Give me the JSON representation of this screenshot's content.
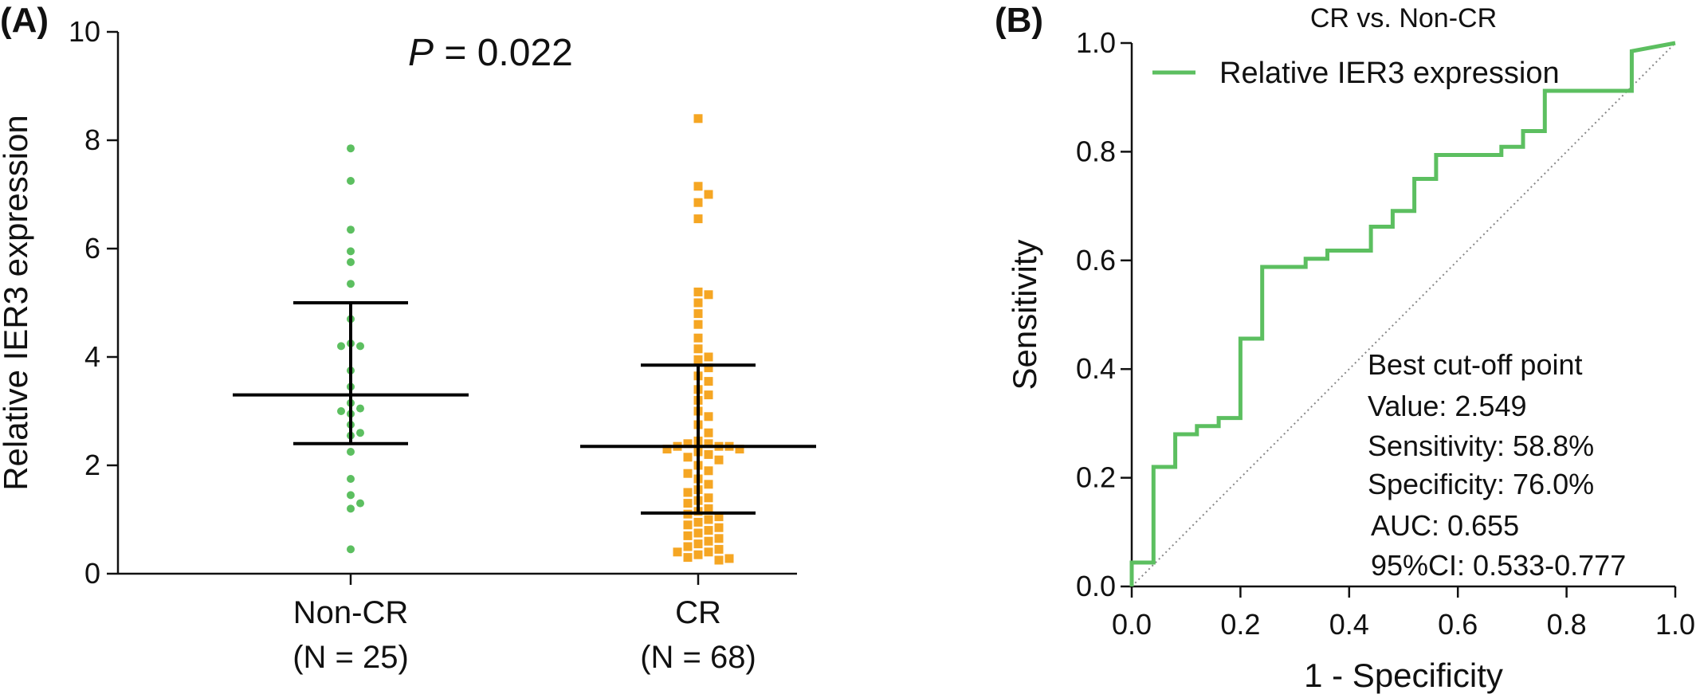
{
  "chart_data": [
    {
      "panel": "(A)",
      "type": "scatter",
      "title": "",
      "annotation": {
        "p_italic": "P",
        "p_rest": " = 0.022"
      },
      "ylabel": "Relative IER3 expression",
      "xlabel": "",
      "ylim": [
        0,
        10
      ],
      "yticks": [
        "0",
        "2",
        "4",
        "6",
        "8",
        "10"
      ],
      "categories": [
        {
          "line1": "Non-CR",
          "line2": "(N = 25)"
        },
        {
          "line1": "CR",
          "line2": "(N = 68)"
        }
      ],
      "series": [
        {
          "category": 0,
          "marker": "circle",
          "color": "#5cbf60",
          "values": [
            7.85,
            7.25,
            6.35,
            5.95,
            5.75,
            5.35,
            4.7,
            4.25,
            4.2,
            4.2,
            3.75,
            3.45,
            3.15,
            3.05,
            3.0,
            2.95,
            2.75,
            2.6,
            2.55,
            2.25,
            1.75,
            1.45,
            1.3,
            1.2,
            0.45
          ],
          "median": 3.3,
          "q1": 2.4,
          "q3": 5.0
        },
        {
          "category": 1,
          "marker": "square",
          "color": "#f5a623",
          "values": [
            8.4,
            7.15,
            7.0,
            6.85,
            6.55,
            5.2,
            5.15,
            5.0,
            4.8,
            4.6,
            4.35,
            4.15,
            4.0,
            3.95,
            3.8,
            3.65,
            3.55,
            3.4,
            3.3,
            3.2,
            3.0,
            2.9,
            2.75,
            2.6,
            2.45,
            2.4,
            2.4,
            2.35,
            2.35,
            2.35,
            2.3,
            2.3,
            2.25,
            2.2,
            2.15,
            2.1,
            2.0,
            1.9,
            1.85,
            1.75,
            1.65,
            1.55,
            1.5,
            1.4,
            1.35,
            1.3,
            1.2,
            1.15,
            1.1,
            1.05,
            1.0,
            0.95,
            0.9,
            0.85,
            0.8,
            0.75,
            0.7,
            0.65,
            0.6,
            0.55,
            0.5,
            0.45,
            0.4,
            0.4,
            0.35,
            0.3,
            0.28,
            0.25
          ],
          "median": 2.35,
          "q1": 1.12,
          "q3": 3.85
        }
      ]
    },
    {
      "panel": "(B)",
      "type": "line",
      "title": "CR vs. Non-CR",
      "xlabel": "1 - Specificity",
      "ylabel": "Sensitivity",
      "xlim": [
        0,
        1
      ],
      "ylim": [
        0,
        1
      ],
      "xticks": [
        "0.0",
        "0.2",
        "0.4",
        "0.6",
        "0.8",
        "1.0"
      ],
      "yticks": [
        "0.0",
        "0.2",
        "0.4",
        "0.6",
        "0.8",
        "1.0"
      ],
      "legend": {
        "position": "top-left",
        "label": "Relative IER3 expression",
        "color": "#5cbf60"
      },
      "series": [
        {
          "name": "Relative IER3 expression",
          "color": "#5cbf60",
          "x": [
            0,
            0,
            0.04,
            0.04,
            0.08,
            0.08,
            0.12,
            0.12,
            0.16,
            0.16,
            0.2,
            0.2,
            0.24,
            0.24,
            0.32,
            0.32,
            0.36,
            0.36,
            0.44,
            0.44,
            0.48,
            0.48,
            0.52,
            0.52,
            0.56,
            0.56,
            0.68,
            0.68,
            0.72,
            0.72,
            0.76,
            0.76,
            0.92,
            0.92,
            1.0
          ],
          "y": [
            0,
            0.044,
            0.044,
            0.22,
            0.22,
            0.28,
            0.28,
            0.295,
            0.295,
            0.31,
            0.31,
            0.456,
            0.456,
            0.588,
            0.588,
            0.603,
            0.603,
            0.618,
            0.618,
            0.662,
            0.662,
            0.691,
            0.691,
            0.75,
            0.75,
            0.794,
            0.794,
            0.809,
            0.809,
            0.838,
            0.838,
            0.912,
            0.912,
            0.985,
            1.0
          ]
        }
      ],
      "reference_line": {
        "style": "dotted",
        "from": [
          0,
          0
        ],
        "to": [
          1,
          1
        ]
      },
      "annotations": [
        "Best cut-off point",
        "Value: 2.549",
        "Sensitivity: 58.8%",
        "Specificity: 76.0%",
        "AUC: 0.655",
        "95%CI: 0.533-0.777"
      ]
    }
  ]
}
